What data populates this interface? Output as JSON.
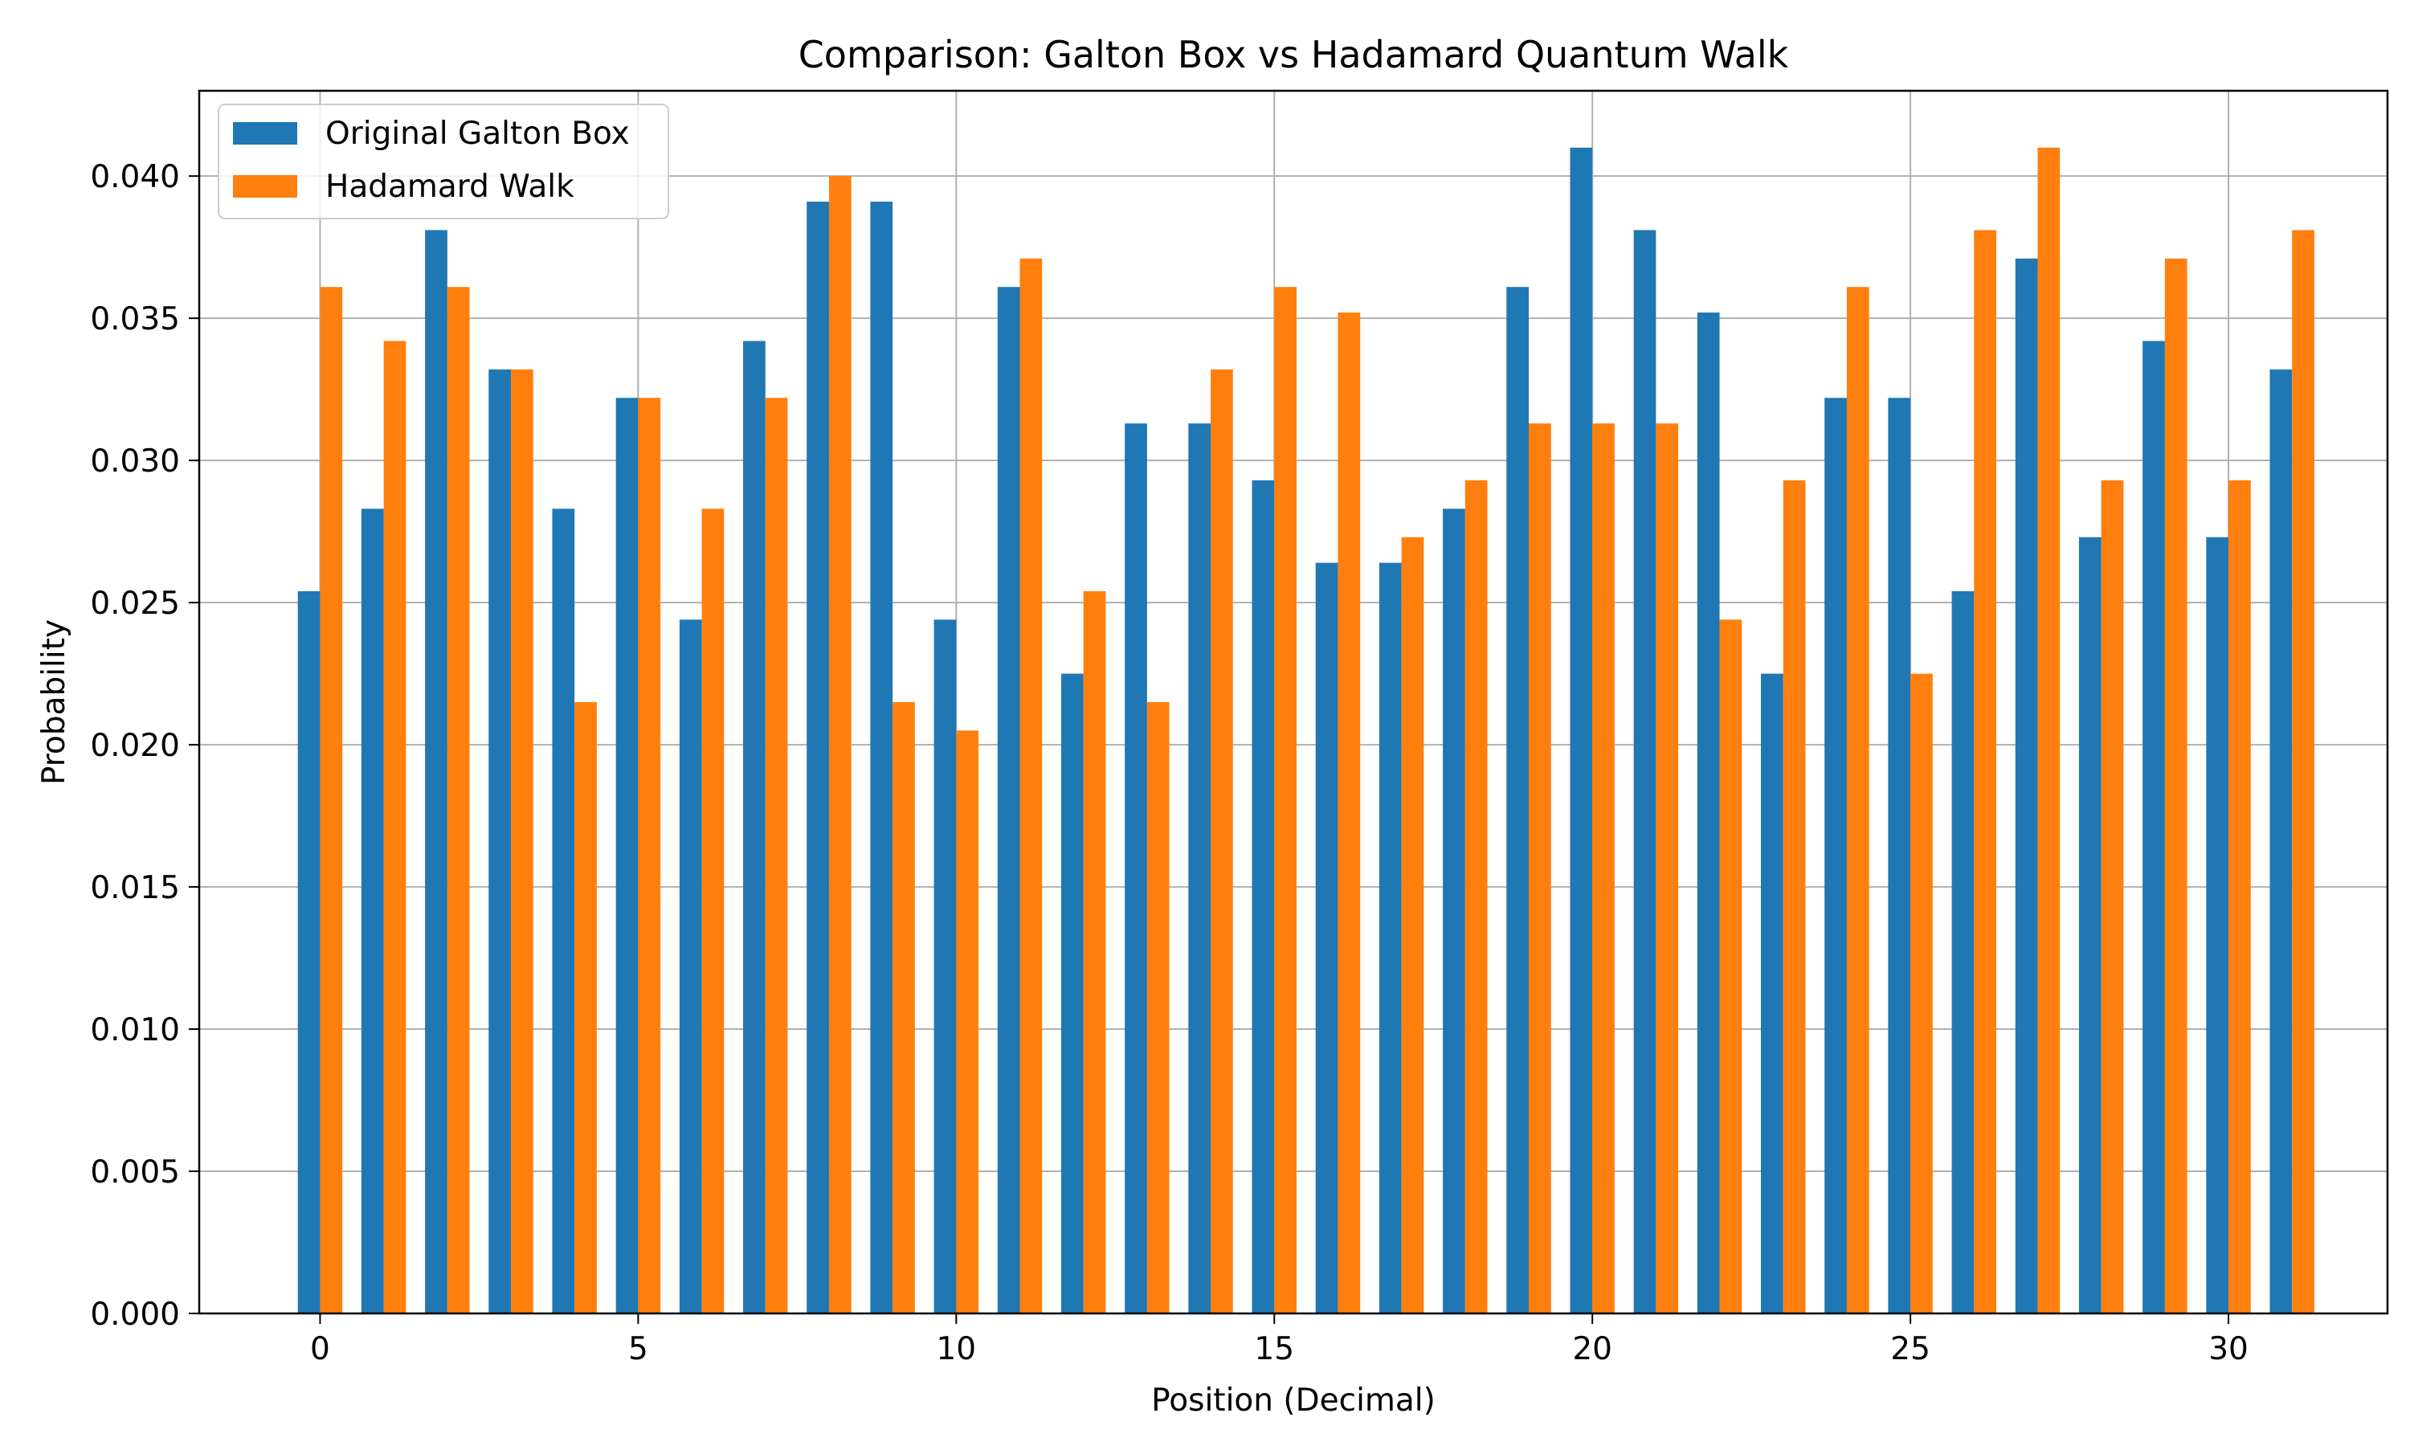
{
  "chart_data": {
    "type": "bar",
    "title": "Comparison: Galton Box vs Hadamard Quantum Walk",
    "xlabel": "Position (Decimal)",
    "ylabel": "Probability",
    "xlim": [
      -1.9,
      32.5
    ],
    "ylim": [
      0,
      0.043
    ],
    "x": [
      0,
      1,
      2,
      3,
      4,
      5,
      6,
      7,
      8,
      9,
      10,
      11,
      12,
      13,
      14,
      15,
      16,
      17,
      18,
      19,
      20,
      21,
      22,
      23,
      24,
      25,
      26,
      27,
      28,
      29,
      30,
      31
    ],
    "x_ticks": [
      0,
      5,
      10,
      15,
      20,
      25,
      30
    ],
    "y_ticks": [
      0.0,
      0.005,
      0.01,
      0.015,
      0.02,
      0.025,
      0.03,
      0.035,
      0.04
    ],
    "y_tick_labels": [
      "0.000",
      "0.005",
      "0.010",
      "0.015",
      "0.020",
      "0.025",
      "0.030",
      "0.035",
      "0.040"
    ],
    "grid": true,
    "legend_position": "top-left",
    "series": [
      {
        "name": "Original Galton Box",
        "color": "#1f77b4",
        "values": [
          0.0254,
          0.0283,
          0.0381,
          0.0332,
          0.0283,
          0.0322,
          0.0244,
          0.0342,
          0.0391,
          0.0391,
          0.0244,
          0.0361,
          0.0225,
          0.0313,
          0.0313,
          0.0293,
          0.0264,
          0.0264,
          0.0283,
          0.0361,
          0.041,
          0.0381,
          0.0352,
          0.0225,
          0.0322,
          0.0322,
          0.0254,
          0.0371,
          0.0273,
          0.0342,
          0.0273,
          0.0332
        ]
      },
      {
        "name": "Hadamard Walk",
        "color": "#ff7f0e",
        "values": [
          0.0361,
          0.0342,
          0.0361,
          0.0332,
          0.0215,
          0.0322,
          0.0283,
          0.0322,
          0.04,
          0.0215,
          0.0205,
          0.0371,
          0.0254,
          0.0215,
          0.0332,
          0.0361,
          0.0352,
          0.0273,
          0.0293,
          0.0313,
          0.0313,
          0.0313,
          0.0244,
          0.0293,
          0.0361,
          0.0225,
          0.0381,
          0.041,
          0.0293,
          0.0371,
          0.0293,
          0.0381
        ]
      }
    ]
  }
}
